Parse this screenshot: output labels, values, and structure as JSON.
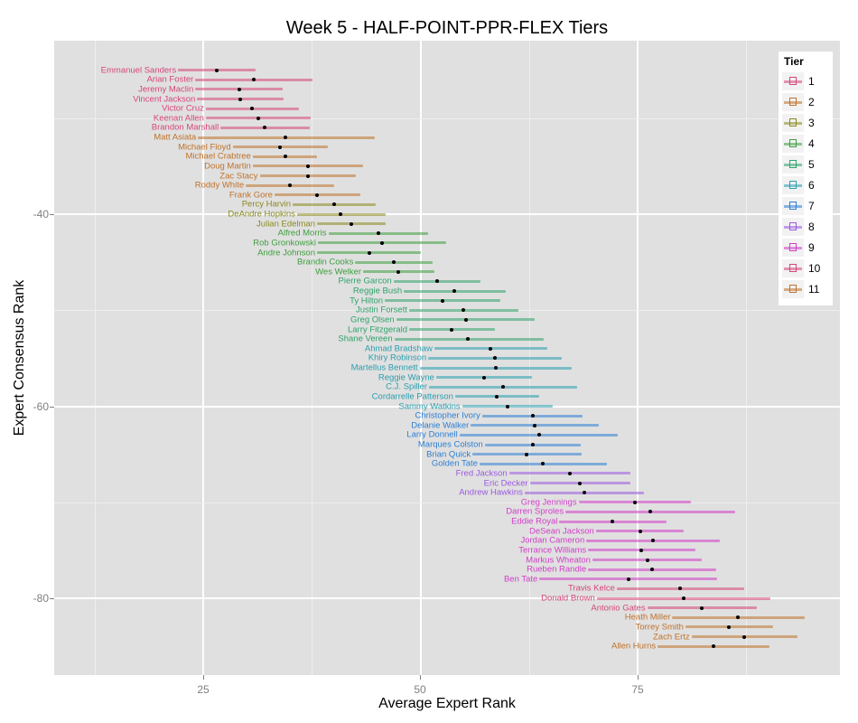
{
  "chart_data": {
    "type": "scatter",
    "subtype": "dot-with-horizontal-error-bars",
    "title": "Week 5 - HALF-POINT-PPR-FLEX Tiers",
    "xlabel": "Average Expert Rank",
    "ylabel": "Expert Consensus Rank",
    "xlim": [
      7.5,
      98.0
    ],
    "ylim": [
      -86.5,
      -20.4
    ],
    "x_ticks": [
      25,
      50,
      75
    ],
    "y_ticks": [
      -40,
      -60,
      -80
    ],
    "grid": true,
    "legend": {
      "title": "Tier",
      "position": "right-inside",
      "entries": [
        "1",
        "2",
        "3",
        "4",
        "5",
        "6",
        "7",
        "8",
        "9",
        "10",
        "11"
      ]
    },
    "tier_colors": {
      "1": "#d6457a",
      "2": "#c0722a",
      "3": "#8a8a20",
      "4": "#3e9e3e",
      "5": "#2fa26a",
      "6": "#2a9eae",
      "7": "#2d7fd3",
      "8": "#9b59e0",
      "9": "#d23cc8",
      "10": "#d6457a",
      "11": "#c0722a"
    },
    "points": [
      {
        "name": "Emmanuel Sanders",
        "tier": 1,
        "rank": 25,
        "avg": 26.6,
        "lo": 22.1,
        "hi": 31.0
      },
      {
        "name": "Arian Foster",
        "tier": 1,
        "rank": 26,
        "avg": 30.8,
        "lo": 24.1,
        "hi": 37.6
      },
      {
        "name": "Jeremy Maclin",
        "tier": 1,
        "rank": 27,
        "avg": 29.2,
        "lo": 24.1,
        "hi": 34.2
      },
      {
        "name": "Vincent Jackson",
        "tier": 1,
        "rank": 28,
        "avg": 29.3,
        "lo": 24.3,
        "hi": 34.2
      },
      {
        "name": "Victor Cruz",
        "tier": 1,
        "rank": 29,
        "avg": 30.6,
        "lo": 25.3,
        "hi": 36.0
      },
      {
        "name": "Keenan Allen",
        "tier": 1,
        "rank": 30,
        "avg": 31.3,
        "lo": 25.3,
        "hi": 37.4
      },
      {
        "name": "Brandon Marshall",
        "tier": 1,
        "rank": 31,
        "avg": 32.1,
        "lo": 27.0,
        "hi": 37.3
      },
      {
        "name": "Matt Asiata",
        "tier": 2,
        "rank": 32,
        "avg": 34.5,
        "lo": 24.4,
        "hi": 44.8
      },
      {
        "name": "Michael Floyd",
        "tier": 2,
        "rank": 33,
        "avg": 33.8,
        "lo": 28.4,
        "hi": 39.3
      },
      {
        "name": "Michael Crabtree",
        "tier": 2,
        "rank": 34,
        "avg": 34.5,
        "lo": 30.7,
        "hi": 38.1
      },
      {
        "name": "Doug Martin",
        "tier": 2,
        "rank": 35,
        "avg": 37.1,
        "lo": 30.7,
        "hi": 43.4
      },
      {
        "name": "Zac Stacy",
        "tier": 2,
        "rank": 36,
        "avg": 37.1,
        "lo": 31.5,
        "hi": 42.6
      },
      {
        "name": "Roddy White",
        "tier": 2,
        "rank": 37,
        "avg": 35.0,
        "lo": 29.9,
        "hi": 40.1
      },
      {
        "name": "Frank Gore",
        "tier": 2,
        "rank": 38,
        "avg": 38.1,
        "lo": 33.2,
        "hi": 43.1
      },
      {
        "name": "Percy Harvin",
        "tier": 3,
        "rank": 39,
        "avg": 40.1,
        "lo": 35.3,
        "hi": 44.9
      },
      {
        "name": "DeAndre Hopkins",
        "tier": 3,
        "rank": 40,
        "avg": 40.8,
        "lo": 35.8,
        "hi": 46.0
      },
      {
        "name": "Julian Edelman",
        "tier": 3,
        "rank": 41,
        "avg": 42.0,
        "lo": 38.1,
        "hi": 46.0
      },
      {
        "name": "Alfred Morris",
        "tier": 4,
        "rank": 42,
        "avg": 45.2,
        "lo": 39.4,
        "hi": 50.9
      },
      {
        "name": "Rob Gronkowski",
        "tier": 4,
        "rank": 43,
        "avg": 45.6,
        "lo": 38.2,
        "hi": 53.0
      },
      {
        "name": "Andre Johnson",
        "tier": 4,
        "rank": 44,
        "avg": 44.1,
        "lo": 38.1,
        "hi": 50.1
      },
      {
        "name": "Brandin Cooks",
        "tier": 4,
        "rank": 45,
        "avg": 46.9,
        "lo": 42.5,
        "hi": 51.4
      },
      {
        "name": "Wes Welker",
        "tier": 4,
        "rank": 46,
        "avg": 47.5,
        "lo": 43.4,
        "hi": 51.6
      },
      {
        "name": "Pierre Garcon",
        "tier": 5,
        "rank": 47,
        "avg": 51.9,
        "lo": 46.9,
        "hi": 56.9
      },
      {
        "name": "Reggie Bush",
        "tier": 5,
        "rank": 48,
        "avg": 53.9,
        "lo": 48.1,
        "hi": 59.8
      },
      {
        "name": "Ty Hilton",
        "tier": 5,
        "rank": 49,
        "avg": 52.5,
        "lo": 45.9,
        "hi": 59.2
      },
      {
        "name": "Justin Forsett",
        "tier": 5,
        "rank": 50,
        "avg": 54.9,
        "lo": 48.7,
        "hi": 61.3
      },
      {
        "name": "Greg Olsen",
        "tier": 5,
        "rank": 51,
        "avg": 55.2,
        "lo": 47.2,
        "hi": 63.2
      },
      {
        "name": "Larry Fitzgerald",
        "tier": 5,
        "rank": 52,
        "avg": 53.6,
        "lo": 48.7,
        "hi": 58.6
      },
      {
        "name": "Shane Vereen",
        "tier": 5,
        "rank": 53,
        "avg": 55.5,
        "lo": 47.0,
        "hi": 64.2
      },
      {
        "name": "Ahmad Bradshaw",
        "tier": 6,
        "rank": 54,
        "avg": 58.1,
        "lo": 51.6,
        "hi": 64.6
      },
      {
        "name": "Khiry Robinson",
        "tier": 6,
        "rank": 55,
        "avg": 58.6,
        "lo": 50.9,
        "hi": 66.3
      },
      {
        "name": "Martellus Bennett",
        "tier": 6,
        "rank": 56,
        "avg": 58.7,
        "lo": 49.9,
        "hi": 67.4
      },
      {
        "name": "Reggie Wayne",
        "tier": 6,
        "rank": 57,
        "avg": 57.3,
        "lo": 51.8,
        "hi": 62.8
      },
      {
        "name": "C.J. Spiller",
        "tier": 6,
        "rank": 58,
        "avg": 59.5,
        "lo": 51.0,
        "hi": 68.0
      },
      {
        "name": "Cordarrelle Patterson",
        "tier": 6,
        "rank": 59,
        "avg": 58.8,
        "lo": 54.0,
        "hi": 63.7
      },
      {
        "name": "Sammy Watkins",
        "tier": 6,
        "rank": 60,
        "avg": 60.0,
        "lo": 54.8,
        "hi": 65.2
      },
      {
        "name": "Christopher Ivory",
        "tier": 7,
        "rank": 61,
        "avg": 62.9,
        "lo": 57.1,
        "hi": 68.7
      },
      {
        "name": "Delanie Walker",
        "tier": 7,
        "rank": 62,
        "avg": 63.1,
        "lo": 55.8,
        "hi": 70.5
      },
      {
        "name": "Larry Donnell",
        "tier": 7,
        "rank": 63,
        "avg": 63.7,
        "lo": 54.5,
        "hi": 72.7
      },
      {
        "name": "Marques Colston",
        "tier": 7,
        "rank": 64,
        "avg": 62.9,
        "lo": 57.4,
        "hi": 68.4
      },
      {
        "name": "Brian Quick",
        "tier": 7,
        "rank": 65,
        "avg": 62.2,
        "lo": 56.0,
        "hi": 68.6
      },
      {
        "name": "Golden Tate",
        "tier": 7,
        "rank": 66,
        "avg": 64.1,
        "lo": 56.8,
        "hi": 71.5
      },
      {
        "name": "Fred Jackson",
        "tier": 8,
        "rank": 67,
        "avg": 67.2,
        "lo": 60.2,
        "hi": 74.2
      },
      {
        "name": "Eric Decker",
        "tier": 8,
        "rank": 68,
        "avg": 68.3,
        "lo": 62.6,
        "hi": 74.2
      },
      {
        "name": "Andrew Hawkins",
        "tier": 8,
        "rank": 69,
        "avg": 68.9,
        "lo": 62.0,
        "hi": 75.7
      },
      {
        "name": "Greg Jennings",
        "tier": 9,
        "rank": 70,
        "avg": 74.7,
        "lo": 68.2,
        "hi": 81.1
      },
      {
        "name": "Darren Sproles",
        "tier": 9,
        "rank": 71,
        "avg": 76.5,
        "lo": 66.7,
        "hi": 86.2
      },
      {
        "name": "Eddie Royal",
        "tier": 9,
        "rank": 72,
        "avg": 72.1,
        "lo": 66.0,
        "hi": 78.3
      },
      {
        "name": "DeSean Jackson",
        "tier": 9,
        "rank": 73,
        "avg": 75.3,
        "lo": 70.2,
        "hi": 80.3
      },
      {
        "name": "Jordan Cameron",
        "tier": 9,
        "rank": 74,
        "avg": 76.8,
        "lo": 69.1,
        "hi": 84.5
      },
      {
        "name": "Terrance Williams",
        "tier": 9,
        "rank": 75,
        "avg": 75.4,
        "lo": 69.3,
        "hi": 81.7
      },
      {
        "name": "Markus Wheaton",
        "tier": 9,
        "rank": 76,
        "avg": 76.1,
        "lo": 69.8,
        "hi": 82.4
      },
      {
        "name": "Rueben Randle",
        "tier": 9,
        "rank": 77,
        "avg": 76.7,
        "lo": 69.3,
        "hi": 84.0
      },
      {
        "name": "Ben Tate",
        "tier": 9,
        "rank": 78,
        "avg": 74.0,
        "lo": 63.7,
        "hi": 84.2
      },
      {
        "name": "Travis Kelce",
        "tier": 10,
        "rank": 79,
        "avg": 79.9,
        "lo": 72.6,
        "hi": 87.3
      },
      {
        "name": "Donald Brown",
        "tier": 10,
        "rank": 80,
        "avg": 80.3,
        "lo": 70.3,
        "hi": 90.3
      },
      {
        "name": "Antonio Gates",
        "tier": 10,
        "rank": 81,
        "avg": 82.4,
        "lo": 76.1,
        "hi": 88.7
      },
      {
        "name": "Heath Miller",
        "tier": 11,
        "rank": 82,
        "avg": 86.5,
        "lo": 79.0,
        "hi": 94.2
      },
      {
        "name": "Torrey Smith",
        "tier": 11,
        "rank": 83,
        "avg": 85.5,
        "lo": 80.5,
        "hi": 90.6
      },
      {
        "name": "Zach Ertz",
        "tier": 11,
        "rank": 84,
        "avg": 87.3,
        "lo": 81.2,
        "hi": 93.4
      },
      {
        "name": "Allen Hurns",
        "tier": 11,
        "rank": 85,
        "avg": 83.7,
        "lo": 77.3,
        "hi": 90.2
      }
    ]
  },
  "labels": {
    "title": "Week 5 - HALF-POINT-PPR-FLEX Tiers",
    "xlabel": "Average Expert Rank",
    "ylabel": "Expert Consensus Rank",
    "legend_title": "Tier",
    "x_tick_labels": [
      "25",
      "50",
      "75"
    ],
    "y_tick_labels": [
      "-40",
      "-60",
      "-80"
    ]
  }
}
